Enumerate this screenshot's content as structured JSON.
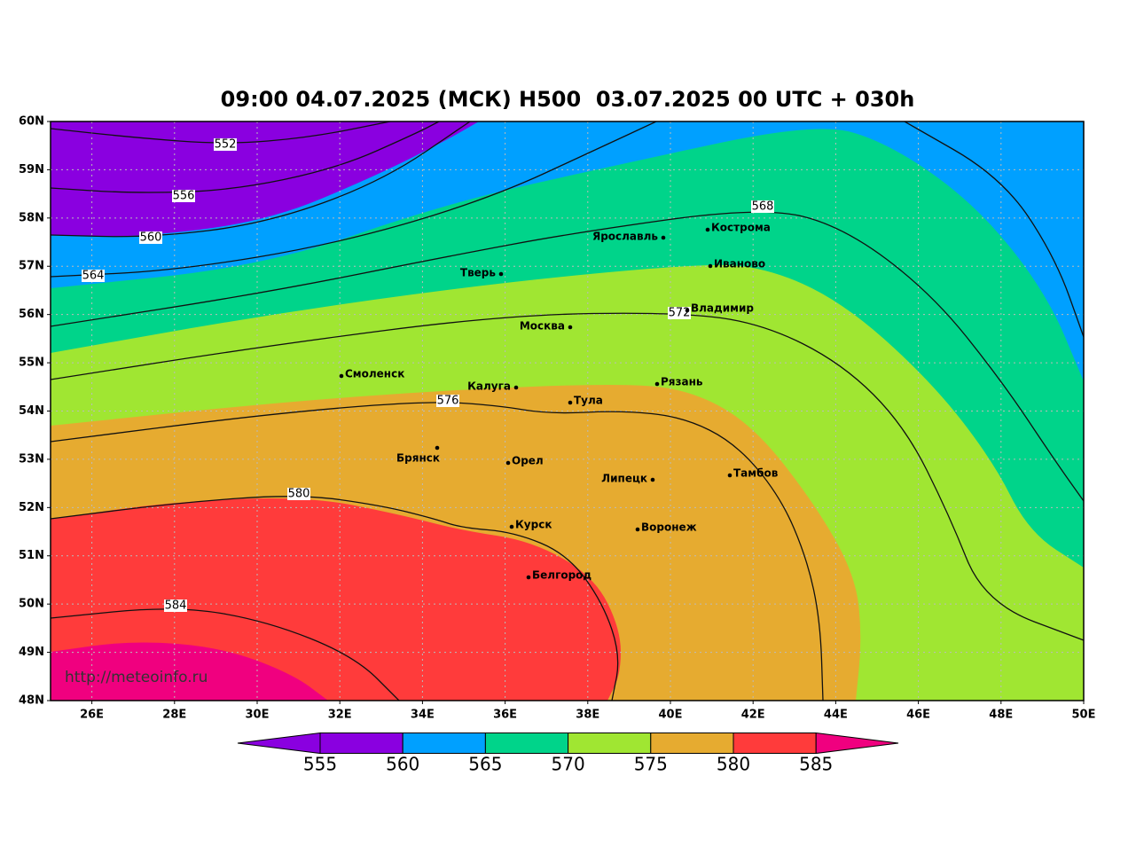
{
  "title": "09:00 04.07.2025 (МСК) H500  03.07.2025 00 UTC + 030h",
  "map": {
    "lat_ticks": [
      {
        "value": 60,
        "label": "60N"
      },
      {
        "value": 59,
        "label": "59N"
      },
      {
        "value": 58,
        "label": "58N"
      },
      {
        "value": 57,
        "label": "57N"
      },
      {
        "value": 56,
        "label": "56N"
      },
      {
        "value": 55,
        "label": "55N"
      },
      {
        "value": 54,
        "label": "54N"
      },
      {
        "value": 53,
        "label": "53N"
      },
      {
        "value": 52,
        "label": "52N"
      },
      {
        "value": 51,
        "label": "51N"
      },
      {
        "value": 50,
        "label": "50N"
      },
      {
        "value": 49,
        "label": "49N"
      },
      {
        "value": 48,
        "label": "48N"
      }
    ],
    "lon_ticks": [
      {
        "value": 26,
        "label": "26E"
      },
      {
        "value": 28,
        "label": "28E"
      },
      {
        "value": 30,
        "label": "30E"
      },
      {
        "value": 32,
        "label": "32E"
      },
      {
        "value": 34,
        "label": "34E"
      },
      {
        "value": 36,
        "label": "36E"
      },
      {
        "value": 38,
        "label": "38E"
      },
      {
        "value": 40,
        "label": "40E"
      },
      {
        "value": 42,
        "label": "42E"
      },
      {
        "value": 44,
        "label": "44E"
      },
      {
        "value": 46,
        "label": "46E"
      },
      {
        "value": 48,
        "label": "48E"
      },
      {
        "value": 50,
        "label": "50E"
      }
    ],
    "contour_labels": [
      552,
      556,
      560,
      564,
      568,
      572,
      576,
      580,
      584
    ],
    "cities": [
      "Ярославль",
      "Кострома",
      "Тверь",
      "Иваново",
      "Москва",
      "Владимир",
      "Смоленск",
      "Калуга",
      "Рязань",
      "Тула",
      "Брянск",
      "Орел",
      "Липецк",
      "Тамбов",
      "Курск",
      "Воронеж",
      "Белгород"
    ],
    "watermark": "http://meteoinfo.ru"
  },
  "colorbar": {
    "ticks": [
      555,
      560,
      565,
      570,
      575,
      580,
      585
    ],
    "colors": [
      "#8a00e0",
      "#8a00e0",
      "#00a0ff",
      "#00d48a",
      "#a0e632",
      "#e6ab30",
      "#ff3b3b",
      "#f0007f"
    ]
  }
}
